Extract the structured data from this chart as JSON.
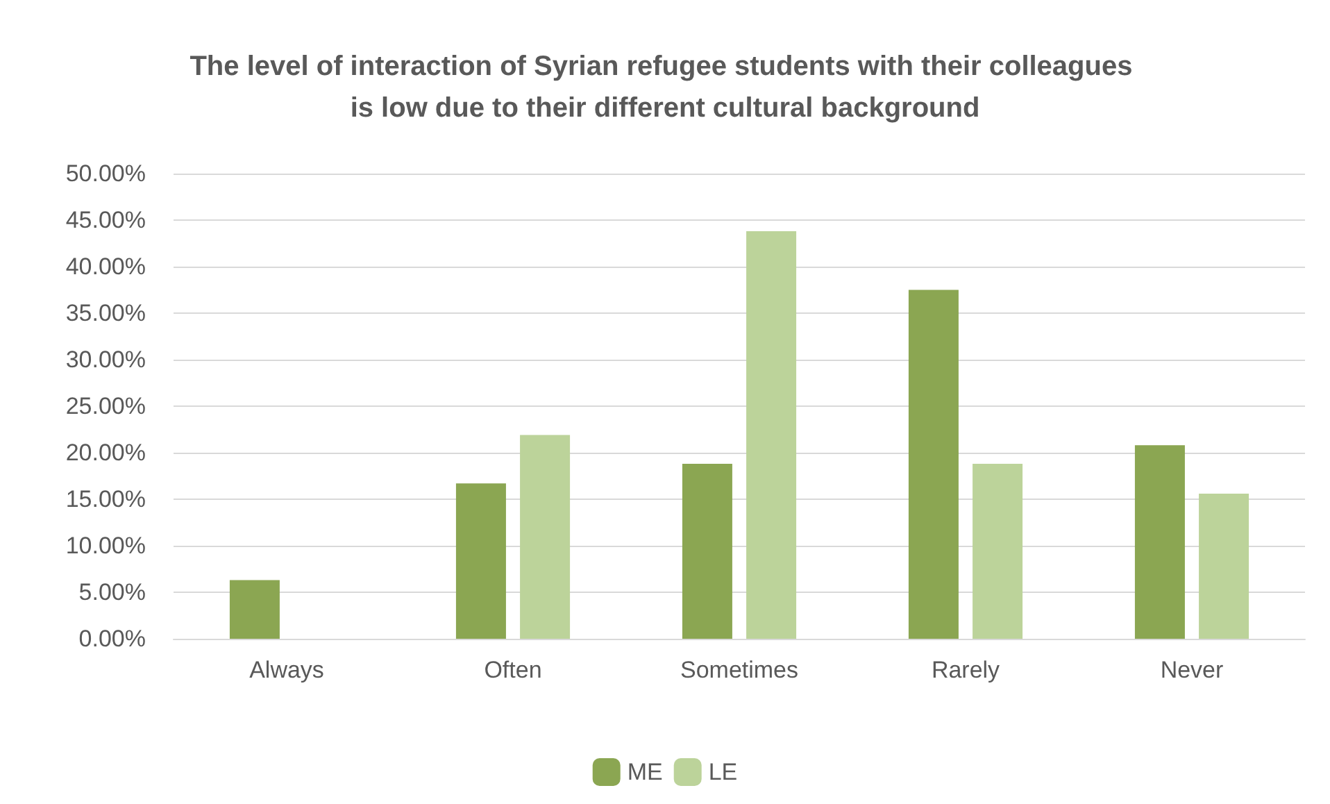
{
  "chart_data": {
    "type": "bar",
    "title": "The level of interaction of Syrian refugee students with their colleagues is low due to their different cultural background",
    "categories": [
      "Always",
      "Often",
      "Sometimes",
      "Rarely",
      "Never"
    ],
    "series": [
      {
        "name": "ME",
        "color": "#8ba652",
        "values": [
          6.3,
          16.7,
          18.8,
          37.5,
          20.8
        ]
      },
      {
        "name": "LE",
        "color": "#bcd39a",
        "values": [
          0,
          21.9,
          43.8,
          18.8,
          15.6
        ]
      }
    ],
    "ylim": [
      0,
      50
    ],
    "yticks": [
      {
        "value": 0,
        "label": "0.00%"
      },
      {
        "value": 5,
        "label": "5.00%"
      },
      {
        "value": 10,
        "label": "10.00%"
      },
      {
        "value": 15,
        "label": "15.00%"
      },
      {
        "value": 20,
        "label": "20.00%"
      },
      {
        "value": 25,
        "label": "25.00%"
      },
      {
        "value": 30,
        "label": "30.00%"
      },
      {
        "value": 35,
        "label": "35.00%"
      },
      {
        "value": 40,
        "label": "40.00%"
      },
      {
        "value": 45,
        "label": "45.00%"
      },
      {
        "value": 50,
        "label": "50.00%"
      }
    ],
    "grid": "y",
    "legend": "bottom"
  }
}
